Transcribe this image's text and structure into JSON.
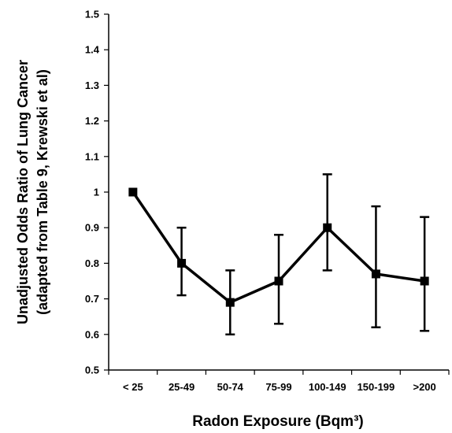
{
  "chart_data": {
    "type": "line",
    "title": "",
    "xlabel": "Radon Exposure (Bqm³)",
    "ylabel_lines": [
      "Unadjusted Odds Ratio of Lung Cancer",
      "(adapted from Table 9, Krewski et al)"
    ],
    "ylim": [
      0.5,
      1.5
    ],
    "yticks": [
      "0.5",
      "0.6",
      "0.7",
      "0.8",
      "0.9",
      "1",
      "1.1",
      "1.2",
      "1.3",
      "1.4",
      "1.5"
    ],
    "categories": [
      "< 25",
      "25-49",
      "50-74",
      "75-99",
      "100-149",
      "150-199",
      ">200"
    ],
    "series": [
      {
        "values": [
          1.0,
          0.8,
          0.69,
          0.75,
          0.9,
          0.77,
          0.75
        ],
        "lower": [
          1.0,
          0.71,
          0.6,
          0.63,
          0.78,
          0.62,
          0.61
        ],
        "upper": [
          1.0,
          0.9,
          0.78,
          0.88,
          1.05,
          0.96,
          0.93
        ]
      }
    ],
    "grid": false,
    "legend": "none",
    "colors": {
      "line": "#000000",
      "axis": "#000000"
    }
  }
}
